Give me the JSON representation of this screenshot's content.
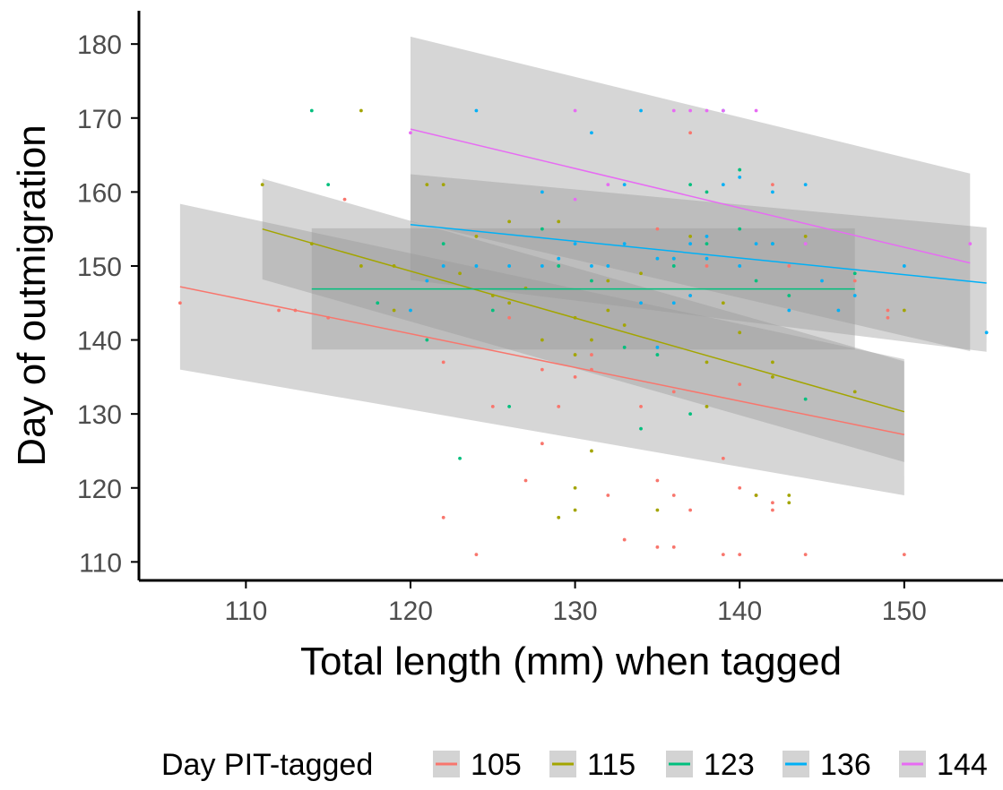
{
  "chart_data": {
    "type": "scatter",
    "title": "",
    "xlabel": "Total length (mm) when tagged",
    "ylabel": "Day of outmigration",
    "xlim": [
      103.5,
      156
    ],
    "ylim": [
      107.5,
      184.5
    ],
    "x_ticks": [
      110,
      120,
      130,
      140,
      150
    ],
    "y_ticks": [
      110,
      120,
      130,
      140,
      150,
      160,
      170,
      180
    ],
    "grid": false,
    "legend_position": "bottom",
    "legend_title": "Day PIT-tagged",
    "series": [
      {
        "name": "105",
        "color": "#F8766D",
        "fit": {
          "x": [
            106,
            150
          ],
          "y": [
            147.2,
            127.2
          ],
          "ci_lower": [
            136.0,
            119.0
          ],
          "ci_upper": [
            158.4,
            137.4
          ]
        },
        "points": [
          [
            106,
            145
          ],
          [
            112,
            144
          ],
          [
            113,
            144
          ],
          [
            115,
            143
          ],
          [
            116,
            159
          ],
          [
            122,
            137
          ],
          [
            122,
            116
          ],
          [
            124,
            111
          ],
          [
            125,
            131
          ],
          [
            126,
            143
          ],
          [
            127,
            121
          ],
          [
            128,
            126
          ],
          [
            128,
            136
          ],
          [
            129,
            131
          ],
          [
            130,
            135
          ],
          [
            131,
            138
          ],
          [
            131,
            136
          ],
          [
            132,
            119
          ],
          [
            133,
            113
          ],
          [
            134,
            131
          ],
          [
            135,
            112
          ],
          [
            135,
            121
          ],
          [
            135,
            155
          ],
          [
            136,
            119
          ],
          [
            136,
            112
          ],
          [
            136,
            133
          ],
          [
            137,
            117
          ],
          [
            137,
            168
          ],
          [
            137,
            146
          ],
          [
            138,
            150
          ],
          [
            139,
            124
          ],
          [
            139,
            111
          ],
          [
            140,
            111
          ],
          [
            140,
            120
          ],
          [
            140,
            134
          ],
          [
            141,
            119
          ],
          [
            142,
            118
          ],
          [
            142,
            117
          ],
          [
            142,
            161
          ],
          [
            143,
            150
          ],
          [
            144,
            111
          ],
          [
            147,
            148
          ],
          [
            149,
            144
          ],
          [
            149,
            143
          ],
          [
            150,
            111
          ]
        ]
      },
      {
        "name": "115",
        "color": "#A3A500",
        "fit": {
          "x": [
            111,
            150
          ],
          "y": [
            155.0,
            130.3
          ],
          "ci_lower": [
            148.2,
            123.5
          ],
          "ci_upper": [
            161.8,
            137.1
          ]
        },
        "points": [
          [
            111,
            161
          ],
          [
            114,
            153
          ],
          [
            117,
            171
          ],
          [
            117,
            150
          ],
          [
            119,
            150
          ],
          [
            119,
            144
          ],
          [
            121,
            161
          ],
          [
            122,
            161
          ],
          [
            123,
            149
          ],
          [
            124,
            154
          ],
          [
            125,
            146
          ],
          [
            126,
            145
          ],
          [
            126,
            156
          ],
          [
            127,
            147
          ],
          [
            128,
            140
          ],
          [
            129,
            156
          ],
          [
            129,
            116
          ],
          [
            130,
            117
          ],
          [
            130,
            120
          ],
          [
            130,
            138
          ],
          [
            130,
            143
          ],
          [
            131,
            125
          ],
          [
            131,
            140
          ],
          [
            132,
            148
          ],
          [
            132,
            144
          ],
          [
            133,
            142
          ],
          [
            134,
            149
          ],
          [
            135,
            117
          ],
          [
            136,
            151
          ],
          [
            137,
            154
          ],
          [
            138,
            131
          ],
          [
            138,
            137
          ],
          [
            139,
            145
          ],
          [
            140,
            141
          ],
          [
            141,
            119
          ],
          [
            142,
            137
          ],
          [
            142,
            135
          ],
          [
            143,
            118
          ],
          [
            143,
            119
          ],
          [
            144,
            154
          ],
          [
            147,
            133
          ],
          [
            150,
            144
          ]
        ]
      },
      {
        "name": "123",
        "color": "#00BF7D",
        "fit": {
          "x": [
            114,
            147
          ],
          "y": [
            146.9,
            146.9
          ],
          "ci_lower": [
            138.7,
            138.7
          ],
          "ci_upper": [
            155.1,
            155.1
          ]
        },
        "points": [
          [
            114,
            171
          ],
          [
            115,
            161
          ],
          [
            118,
            145
          ],
          [
            121,
            140
          ],
          [
            122,
            153
          ],
          [
            123,
            124
          ],
          [
            125,
            144
          ],
          [
            126,
            131
          ],
          [
            128,
            155
          ],
          [
            129,
            150
          ],
          [
            131,
            148
          ],
          [
            133,
            139
          ],
          [
            134,
            128
          ],
          [
            135,
            138
          ],
          [
            136,
            150
          ],
          [
            137,
            161
          ],
          [
            137,
            130
          ],
          [
            138,
            160
          ],
          [
            138,
            153
          ],
          [
            140,
            163
          ],
          [
            140,
            155
          ],
          [
            141,
            148
          ],
          [
            142,
            153
          ],
          [
            143,
            146
          ],
          [
            144,
            132
          ],
          [
            147,
            149
          ]
        ]
      },
      {
        "name": "136",
        "color": "#00B0F6",
        "fit": {
          "x": [
            120,
            155
          ],
          "y": [
            155.6,
            147.7
          ],
          "ci_lower": [
            148.1,
            138.4
          ],
          "ci_upper": [
            162.4,
            155.2
          ]
        },
        "points": [
          [
            120,
            144
          ],
          [
            121,
            148
          ],
          [
            122,
            150
          ],
          [
            124,
            171
          ],
          [
            124,
            150
          ],
          [
            126,
            150
          ],
          [
            128,
            160
          ],
          [
            128,
            150
          ],
          [
            129,
            151
          ],
          [
            130,
            153
          ],
          [
            131,
            168
          ],
          [
            131,
            150
          ],
          [
            132,
            150
          ],
          [
            133,
            161
          ],
          [
            133,
            153
          ],
          [
            134,
            171
          ],
          [
            134,
            145
          ],
          [
            135,
            139
          ],
          [
            135,
            151
          ],
          [
            136,
            145
          ],
          [
            136,
            151
          ],
          [
            137,
            153
          ],
          [
            137,
            146
          ],
          [
            138,
            154
          ],
          [
            138,
            151
          ],
          [
            139,
            171
          ],
          [
            139,
            161
          ],
          [
            140,
            162
          ],
          [
            140,
            150
          ],
          [
            141,
            153
          ],
          [
            142,
            160
          ],
          [
            142,
            153
          ],
          [
            143,
            144
          ],
          [
            144,
            161
          ],
          [
            145,
            148
          ],
          [
            146,
            144
          ],
          [
            147,
            146
          ],
          [
            150,
            150
          ],
          [
            155,
            141
          ]
        ]
      },
      {
        "name": "144",
        "color": "#E76BF3",
        "fit": {
          "x": [
            120,
            154
          ],
          "y": [
            168.5,
            150.4
          ],
          "ci_lower": [
            156.0,
            138.5
          ],
          "ci_upper": [
            181.0,
            162.5
          ]
        },
        "points": [
          [
            120,
            168
          ],
          [
            130,
            171
          ],
          [
            130,
            159
          ],
          [
            132,
            161
          ],
          [
            136,
            171
          ],
          [
            137,
            171
          ],
          [
            138,
            171
          ],
          [
            139,
            171
          ],
          [
            141,
            171
          ],
          [
            144,
            153
          ],
          [
            154,
            153
          ]
        ]
      }
    ]
  }
}
